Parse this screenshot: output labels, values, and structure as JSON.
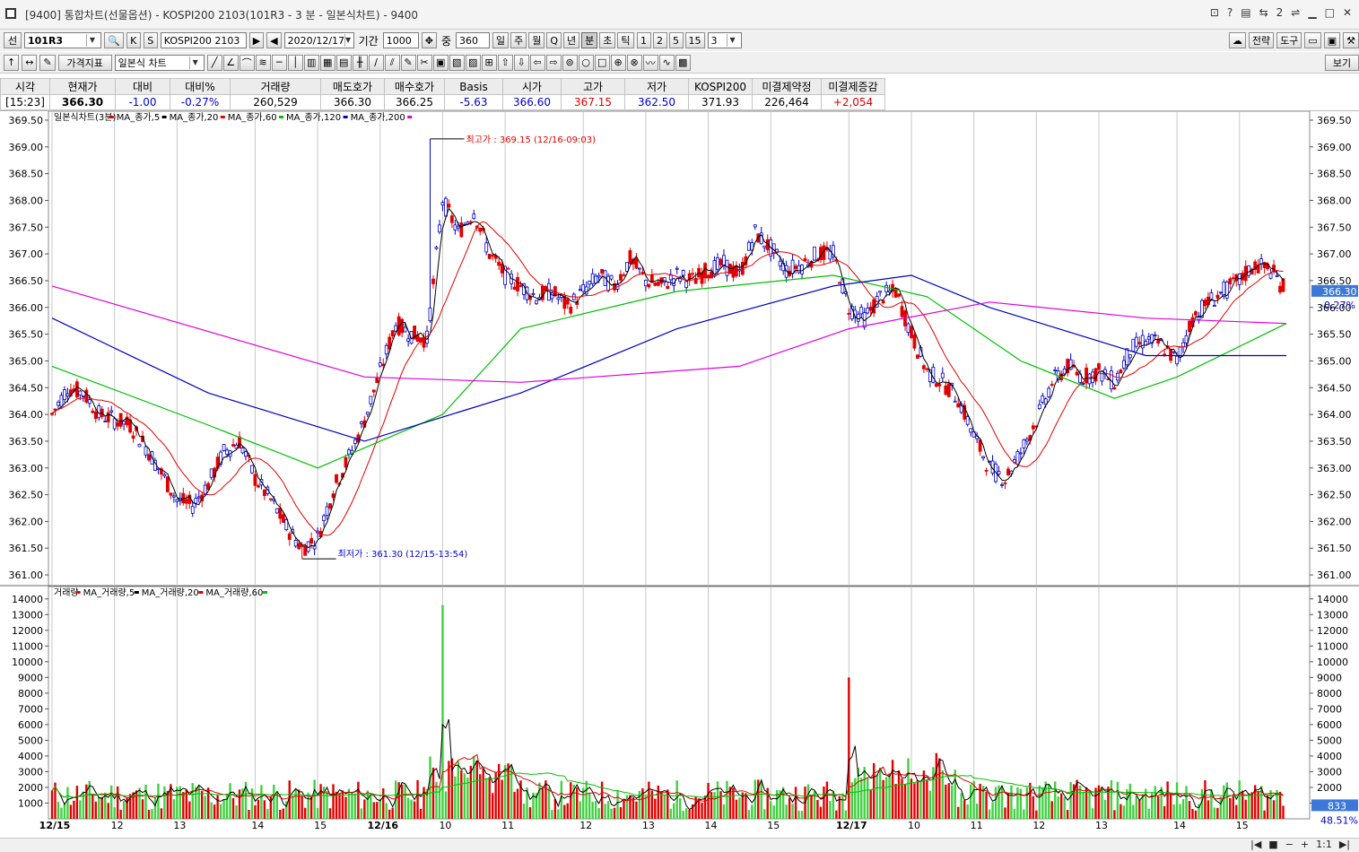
{
  "window": {
    "title": "[9400] 통합차트(선물옵션) - KOSPI200 2103(101R3 - 3 분 - 일본식차트) - 9400",
    "controls": [
      "?",
      "2",
      "_",
      "□",
      "×"
    ]
  },
  "toolbar1": {
    "type_label": "선",
    "code": "101R3",
    "k_label": "K",
    "s_label": "S",
    "name": "KOSPI200 2103",
    "date": "2020/12/17",
    "period_label": "기간",
    "period_value": "1000",
    "count_label": "중",
    "count_value": "360",
    "interval_buttons": [
      "일",
      "주",
      "월",
      "Q",
      "년",
      "분",
      "초",
      "틱"
    ],
    "selected_interval": "분",
    "minute_buttons": [
      "1",
      "2",
      "5",
      "15"
    ],
    "minute_value": "3",
    "strategy_label": "전략",
    "tools_label": "도구"
  },
  "toolbar2": {
    "indicator_label": "가격지표",
    "chart_type": "일본식 차트",
    "view_label": "보기"
  },
  "quote": {
    "headers": [
      "시각",
      "현재가",
      "대비",
      "대비%",
      "거래량",
      "매도호가",
      "매수호가",
      "Basis",
      "시가",
      "고가",
      "저가",
      "KOSPI200",
      "미결제약정",
      "미결제증감"
    ],
    "values": [
      "[15:23]",
      "366.30",
      "-1.00",
      "-0.27%",
      "260,529",
      "366.30",
      "366.25",
      "-5.63",
      "366.60",
      "367.15",
      "362.50",
      "371.93",
      "226,464",
      "+2,054"
    ]
  },
  "price_legend": {
    "name": "일본식차트(3분)",
    "items": [
      "MA_종가,5",
      "MA_종가,20",
      "MA_종가,60",
      "MA_종가,120",
      "MA_종가,200"
    ],
    "colors": [
      "#e00000",
      "#000000",
      "#e00000",
      "#00c000",
      "#0000c0",
      "#e000e0"
    ]
  },
  "volume_legend": {
    "name": "거래량",
    "items": [
      "MA_거래량,5",
      "MA_거래량,20",
      "MA_거래량,60"
    ],
    "colors": [
      "#e00000",
      "#000000",
      "#e00000",
      "#00c000"
    ]
  },
  "annotations": {
    "high": "최고가 : 369.15 (12/16-09:03)",
    "low": "최저가 : 361.30 (12/15-13:54)"
  },
  "current_price_tag": "366.30",
  "current_pct_tag": "-0.27%",
  "volume_tag": "833",
  "volume_pct_tag": "48.51%",
  "bottom_controls": [
    "1:1"
  ],
  "chart_data": [
    {
      "type": "candlestick",
      "title": "일본식차트(3분)",
      "y_ticks": [
        "361.00",
        "361.50",
        "362.00",
        "362.50",
        "363.00",
        "363.50",
        "364.00",
        "364.50",
        "365.00",
        "365.50",
        "366.00",
        "366.50",
        "367.00",
        "367.50",
        "368.00",
        "368.50",
        "369.00",
        "369.50"
      ],
      "ylim": [
        360.8,
        369.6
      ],
      "x_labels": [
        "12/15",
        "12",
        "13",
        "14",
        "15",
        "12/16",
        "10",
        "11",
        "12",
        "13",
        "14",
        "15",
        "12/17",
        "10",
        "11",
        "12",
        "13",
        "14",
        "15"
      ],
      "price_path": [
        [
          0,
          364.0
        ],
        [
          1,
          364.5
        ],
        [
          2,
          364.4
        ],
        [
          3,
          364.0
        ],
        [
          4,
          363.9
        ],
        [
          5,
          363.8
        ],
        [
          6,
          363.4
        ],
        [
          7,
          362.9
        ],
        [
          8,
          362.4
        ],
        [
          9,
          362.3
        ],
        [
          10,
          362.7
        ],
        [
          11,
          363.3
        ],
        [
          12,
          363.5
        ],
        [
          13,
          362.8
        ],
        [
          14,
          362.4
        ],
        [
          15,
          361.9
        ],
        [
          16,
          361.5
        ],
        [
          17,
          361.7
        ],
        [
          18,
          362.6
        ],
        [
          19,
          363.2
        ],
        [
          20,
          363.9
        ],
        [
          21,
          364.8
        ],
        [
          22,
          365.7
        ],
        [
          23,
          365.5
        ],
        [
          24,
          365.4
        ],
        [
          25,
          368.0
        ],
        [
          26,
          367.4
        ],
        [
          27,
          367.8
        ],
        [
          28,
          367.0
        ],
        [
          29,
          366.6
        ],
        [
          30,
          366.4
        ],
        [
          31,
          366.2
        ],
        [
          32,
          366.3
        ],
        [
          33,
          366.0
        ],
        [
          34,
          366.3
        ],
        [
          35,
          366.6
        ],
        [
          36,
          366.4
        ],
        [
          37,
          366.9
        ],
        [
          38,
          366.5
        ],
        [
          39,
          366.4
        ],
        [
          40,
          366.6
        ],
        [
          41,
          366.5
        ],
        [
          42,
          366.7
        ],
        [
          43,
          366.8
        ],
        [
          44,
          366.6
        ],
        [
          45,
          367.4
        ],
        [
          46,
          367.1
        ],
        [
          47,
          366.7
        ],
        [
          48,
          366.8
        ],
        [
          49,
          367.0
        ],
        [
          50,
          367.0
        ],
        [
          51,
          366.0
        ],
        [
          52,
          365.8
        ],
        [
          53,
          366.2
        ],
        [
          54,
          366.3
        ],
        [
          55,
          365.5
        ],
        [
          56,
          364.8
        ],
        [
          57,
          364.6
        ],
        [
          58,
          364.3
        ],
        [
          59,
          363.6
        ],
        [
          60,
          363.0
        ],
        [
          61,
          362.8
        ],
        [
          62,
          363.3
        ],
        [
          63,
          363.9
        ],
        [
          64,
          364.6
        ],
        [
          65,
          364.9
        ],
        [
          66,
          364.7
        ],
        [
          67,
          364.8
        ],
        [
          68,
          364.6
        ],
        [
          69,
          365.2
        ],
        [
          70,
          365.4
        ],
        [
          71,
          365.3
        ],
        [
          72,
          365.0
        ],
        [
          73,
          365.8
        ],
        [
          74,
          366.1
        ],
        [
          75,
          366.3
        ],
        [
          76,
          366.5
        ],
        [
          77,
          366.8
        ],
        [
          78,
          366.7
        ],
        [
          79,
          366.3
        ]
      ],
      "high": 369.15,
      "low": 361.3,
      "ma_levels": {
        "MA_종가,200": [
          [
            0,
            366.4
          ],
          [
            20,
            364.7
          ],
          [
            30,
            364.6
          ],
          [
            44,
            364.9
          ],
          [
            51,
            365.6
          ],
          [
            60,
            366.1
          ],
          [
            70,
            365.8
          ],
          [
            79,
            365.7
          ]
        ],
        "MA_종가,120": [
          [
            0,
            365.8
          ],
          [
            10,
            364.4
          ],
          [
            20,
            363.5
          ],
          [
            30,
            364.4
          ],
          [
            40,
            365.6
          ],
          [
            50,
            366.4
          ],
          [
            55,
            366.6
          ],
          [
            60,
            366.0
          ],
          [
            70,
            365.1
          ],
          [
            79,
            365.1
          ]
        ],
        "MA_종가,60": [
          [
            0,
            364.9
          ],
          [
            10,
            363.8
          ],
          [
            17,
            363.0
          ],
          [
            25,
            364.0
          ],
          [
            30,
            365.6
          ],
          [
            40,
            366.3
          ],
          [
            50,
            366.6
          ],
          [
            56,
            366.2
          ],
          [
            62,
            365.0
          ],
          [
            68,
            364.3
          ],
          [
            72,
            364.7
          ],
          [
            79,
            365.7
          ]
        ]
      }
    },
    {
      "type": "bar",
      "title": "거래량",
      "y_ticks": [
        "1000",
        "2000",
        "3000",
        "4000",
        "5000",
        "6000",
        "7000",
        "8000",
        "9000",
        "10000",
        "11000",
        "12000",
        "13000",
        "14000"
      ],
      "ylim": [
        0,
        14500
      ],
      "peaks": [
        [
          25,
          13600
        ],
        [
          51,
          9000
        ]
      ],
      "last_value": 833
    }
  ]
}
